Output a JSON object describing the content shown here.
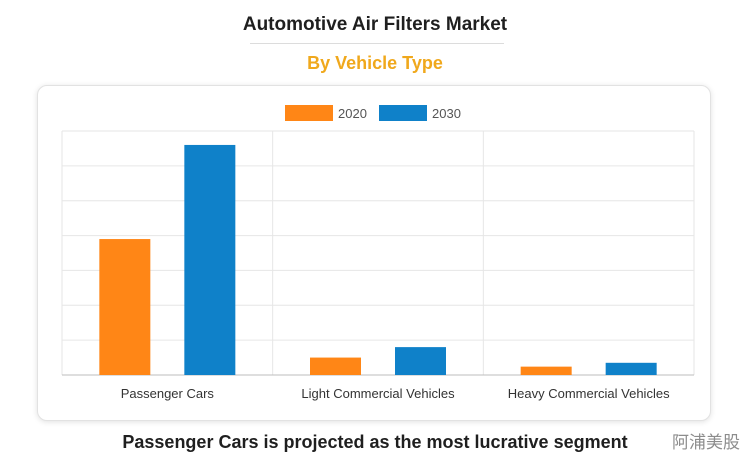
{
  "title": "Automotive Air Filters Market",
  "subtitle": "By Vehicle Type",
  "footer": "Passenger Cars is projected as the most lucrative segment",
  "watermark": "阿浦美股",
  "colors": {
    "series_2020": "#ff8616",
    "series_2030": "#0f81c9",
    "subtitle": "#f0a81c"
  },
  "chart_data": {
    "type": "bar",
    "title": "Automotive Air Filters Market",
    "subtitle": "By Vehicle Type",
    "categories": [
      "Passenger Cars",
      "Light Commercial Vehicles",
      "Heavy Commercial Vehicles"
    ],
    "series": [
      {
        "name": "2020",
        "values": [
          3.9,
          0.5,
          0.24
        ]
      },
      {
        "name": "2030",
        "values": [
          6.6,
          0.8,
          0.35
        ]
      }
    ],
    "xlabel": "",
    "ylabel": "",
    "ylim": [
      0,
      7
    ],
    "grid": true,
    "legend": "top-center"
  }
}
